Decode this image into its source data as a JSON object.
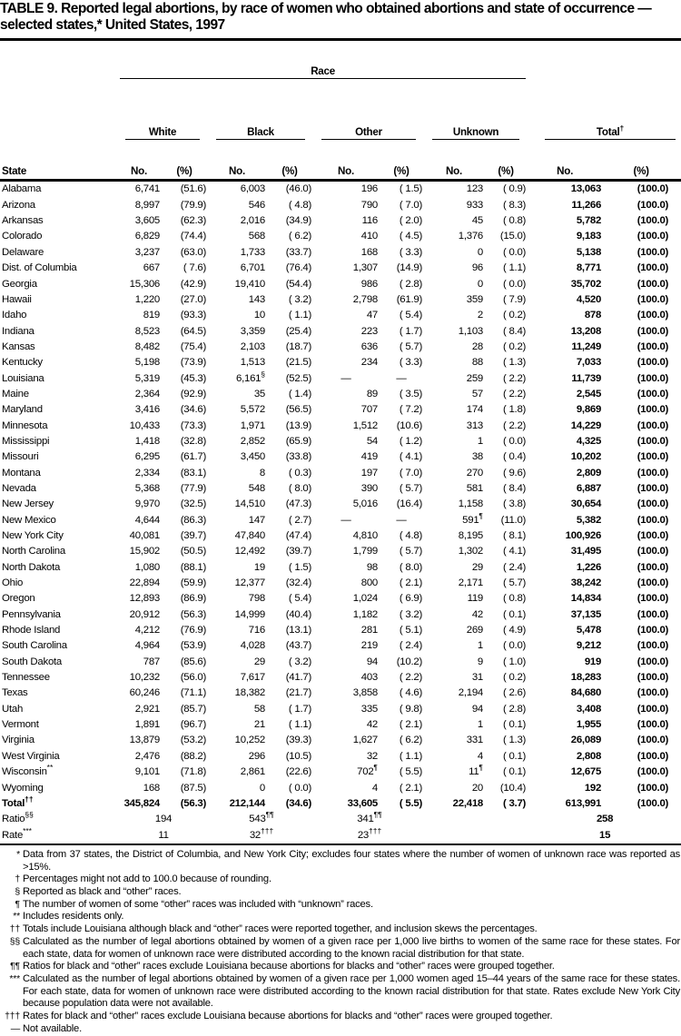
{
  "title": "TABLE 9. Reported legal abortions, by race of women who obtained abortions and state of occurrence — selected states,* United States, 1997",
  "table": {
    "race_label": "Race",
    "state_header": "State",
    "no_header": "No.",
    "pct_header": "(%)",
    "groups": [
      {
        "label": "White",
        "marker": ""
      },
      {
        "label": "Black",
        "marker": ""
      },
      {
        "label": "Other",
        "marker": ""
      },
      {
        "label": "Unknown",
        "marker": ""
      },
      {
        "label": "Total",
        "marker": "†"
      }
    ],
    "rows": [
      {
        "cells": [
          "Alabama",
          "6,741",
          "(51.6)",
          "6,003",
          "(46.0)",
          "196",
          "( 1.5)",
          "123",
          "( 0.9)",
          "13,063",
          "(100.0)"
        ]
      },
      {
        "cells": [
          "Arizona",
          "8,997",
          "(79.9)",
          "546",
          "( 4.8)",
          "790",
          "( 7.0)",
          "933",
          "( 8.3)",
          "11,266",
          "(100.0)"
        ]
      },
      {
        "cells": [
          "Arkansas",
          "3,605",
          "(62.3)",
          "2,016",
          "(34.9)",
          "116",
          "( 2.0)",
          "45",
          "( 0.8)",
          "5,782",
          "(100.0)"
        ]
      },
      {
        "cells": [
          "Colorado",
          "6,829",
          "(74.4)",
          "568",
          "( 6.2)",
          "410",
          "( 4.5)",
          "1,376",
          "(15.0)",
          "9,183",
          "(100.0)"
        ]
      },
      {
        "cells": [
          "Delaware",
          "3,237",
          "(63.0)",
          "1,733",
          "(33.7)",
          "168",
          "( 3.3)",
          "0",
          "( 0.0)",
          "5,138",
          "(100.0)"
        ]
      },
      {
        "cells": [
          "Dist. of Columbia",
          "667",
          "( 7.6)",
          "6,701",
          "(76.4)",
          "1,307",
          "(14.9)",
          "96",
          "( 1.1)",
          "8,771",
          "(100.0)"
        ]
      },
      {
        "cells": [
          "Georgia",
          "15,306",
          "(42.9)",
          "19,410",
          "(54.4)",
          "986",
          "( 2.8)",
          "0",
          "( 0.0)",
          "35,702",
          "(100.0)"
        ]
      },
      {
        "cells": [
          "Hawaii",
          "1,220",
          "(27.0)",
          "143",
          "( 3.2)",
          "2,798",
          "(61.9)",
          "359",
          "( 7.9)",
          "4,520",
          "(100.0)"
        ]
      },
      {
        "cells": [
          "Idaho",
          "819",
          "(93.3)",
          "10",
          "( 1.1)",
          "47",
          "( 5.4)",
          "2",
          "( 0.2)",
          "878",
          "(100.0)"
        ]
      },
      {
        "cells": [
          "Indiana",
          "8,523",
          "(64.5)",
          "3,359",
          "(25.4)",
          "223",
          "( 1.7)",
          "1,103",
          "( 8.4)",
          "13,208",
          "(100.0)"
        ]
      },
      {
        "cells": [
          "Kansas",
          "8,482",
          "(75.4)",
          "2,103",
          "(18.7)",
          "636",
          "( 5.7)",
          "28",
          "( 0.2)",
          "11,249",
          "(100.0)"
        ]
      },
      {
        "cells": [
          "Kentucky",
          "5,198",
          "(73.9)",
          "1,513",
          "(21.5)",
          "234",
          "( 3.3)",
          "88",
          "( 1.3)",
          "7,033",
          "(100.0)"
        ]
      },
      {
        "cells": [
          "Louisiana",
          "5,319",
          "(45.3)",
          "6,161§",
          "(52.5)",
          "—",
          "—",
          "259",
          "( 2.2)",
          "11,739",
          "(100.0)"
        ]
      },
      {
        "cells": [
          "Maine",
          "2,364",
          "(92.9)",
          "35",
          "( 1.4)",
          "89",
          "( 3.5)",
          "57",
          "( 2.2)",
          "2,545",
          "(100.0)"
        ]
      },
      {
        "cells": [
          "Maryland",
          "3,416",
          "(34.6)",
          "5,572",
          "(56.5)",
          "707",
          "( 7.2)",
          "174",
          "( 1.8)",
          "9,869",
          "(100.0)"
        ]
      },
      {
        "cells": [
          "Minnesota",
          "10,433",
          "(73.3)",
          "1,971",
          "(13.9)",
          "1,512",
          "(10.6)",
          "313",
          "( 2.2)",
          "14,229",
          "(100.0)"
        ]
      },
      {
        "cells": [
          "Mississippi",
          "1,418",
          "(32.8)",
          "2,852",
          "(65.9)",
          "54",
          "( 1.2)",
          "1",
          "( 0.0)",
          "4,325",
          "(100.0)"
        ]
      },
      {
        "cells": [
          "Missouri",
          "6,295",
          "(61.7)",
          "3,450",
          "(33.8)",
          "419",
          "( 4.1)",
          "38",
          "( 0.4)",
          "10,202",
          "(100.0)"
        ]
      },
      {
        "cells": [
          "Montana",
          "2,334",
          "(83.1)",
          "8",
          "( 0.3)",
          "197",
          "( 7.0)",
          "270",
          "( 9.6)",
          "2,809",
          "(100.0)"
        ]
      },
      {
        "cells": [
          "Nevada",
          "5,368",
          "(77.9)",
          "548",
          "( 8.0)",
          "390",
          "( 5.7)",
          "581",
          "( 8.4)",
          "6,887",
          "(100.0)"
        ]
      },
      {
        "cells": [
          "New Jersey",
          "9,970",
          "(32.5)",
          "14,510",
          "(47.3)",
          "5,016",
          "(16.4)",
          "1,158",
          "( 3.8)",
          "30,654",
          "(100.0)"
        ]
      },
      {
        "cells": [
          "New Mexico",
          "4,644",
          "(86.3)",
          "147",
          "( 2.7)",
          "—",
          "—",
          "591¶",
          "(11.0)",
          "5,382",
          "(100.0)"
        ]
      },
      {
        "cells": [
          "New York City",
          "40,081",
          "(39.7)",
          "47,840",
          "(47.4)",
          "4,810",
          "( 4.8)",
          "8,195",
          "( 8.1)",
          "100,926",
          "(100.0)"
        ]
      },
      {
        "cells": [
          "North Carolina",
          "15,902",
          "(50.5)",
          "12,492",
          "(39.7)",
          "1,799",
          "( 5.7)",
          "1,302",
          "( 4.1)",
          "31,495",
          "(100.0)"
        ]
      },
      {
        "cells": [
          "North Dakota",
          "1,080",
          "(88.1)",
          "19",
          "( 1.5)",
          "98",
          "( 8.0)",
          "29",
          "( 2.4)",
          "1,226",
          "(100.0)"
        ]
      },
      {
        "cells": [
          "Ohio",
          "22,894",
          "(59.9)",
          "12,377",
          "(32.4)",
          "800",
          "( 2.1)",
          "2,171",
          "( 5.7)",
          "38,242",
          "(100.0)"
        ]
      },
      {
        "cells": [
          "Oregon",
          "12,893",
          "(86.9)",
          "798",
          "( 5.4)",
          "1,024",
          "( 6.9)",
          "119",
          "( 0.8)",
          "14,834",
          "(100.0)"
        ]
      },
      {
        "cells": [
          "Pennsylvania",
          "20,912",
          "(56.3)",
          "14,999",
          "(40.4)",
          "1,182",
          "( 3.2)",
          "42",
          "( 0.1)",
          "37,135",
          "(100.0)"
        ]
      },
      {
        "cells": [
          "Rhode Island",
          "4,212",
          "(76.9)",
          "716",
          "(13.1)",
          "281",
          "( 5.1)",
          "269",
          "( 4.9)",
          "5,478",
          "(100.0)"
        ]
      },
      {
        "cells": [
          "South Carolina",
          "4,964",
          "(53.9)",
          "4,028",
          "(43.7)",
          "219",
          "( 2.4)",
          "1",
          "( 0.0)",
          "9,212",
          "(100.0)"
        ]
      },
      {
        "cells": [
          "South Dakota",
          "787",
          "(85.6)",
          "29",
          "( 3.2)",
          "94",
          "(10.2)",
          "9",
          "( 1.0)",
          "919",
          "(100.0)"
        ]
      },
      {
        "cells": [
          "Tennessee",
          "10,232",
          "(56.0)",
          "7,617",
          "(41.7)",
          "403",
          "( 2.2)",
          "31",
          "( 0.2)",
          "18,283",
          "(100.0)"
        ]
      },
      {
        "cells": [
          "Texas",
          "60,246",
          "(71.1)",
          "18,382",
          "(21.7)",
          "3,858",
          "( 4.6)",
          "2,194",
          "( 2.6)",
          "84,680",
          "(100.0)"
        ]
      },
      {
        "cells": [
          "Utah",
          "2,921",
          "(85.7)",
          "58",
          "( 1.7)",
          "335",
          "( 9.8)",
          "94",
          "( 2.8)",
          "3,408",
          "(100.0)"
        ]
      },
      {
        "cells": [
          "Vermont",
          "1,891",
          "(96.7)",
          "21",
          "( 1.1)",
          "42",
          "( 2.1)",
          "1",
          "( 0.1)",
          "1,955",
          "(100.0)"
        ]
      },
      {
        "cells": [
          "Virginia",
          "13,879",
          "(53.2)",
          "10,252",
          "(39.3)",
          "1,627",
          "( 6.2)",
          "331",
          "( 1.3)",
          "26,089",
          "(100.0)"
        ]
      },
      {
        "cells": [
          "West Virginia",
          "2,476",
          "(88.2)",
          "296",
          "(10.5)",
          "32",
          "( 1.1)",
          "4",
          "( 0.1)",
          "2,808",
          "(100.0)"
        ]
      },
      {
        "cells": [
          "Wisconsin**",
          "9,101",
          "(71.8)",
          "2,861",
          "(22.6)",
          "702¶",
          "( 5.5)",
          "11¶",
          "( 0.1)",
          "12,675",
          "(100.0)"
        ]
      },
      {
        "cells": [
          "Wyoming",
          "168",
          "(87.5)",
          "0",
          "( 0.0)",
          "4",
          "( 2.1)",
          "20",
          "(10.4)",
          "192",
          "(100.0)"
        ]
      },
      {
        "bold": true,
        "cells": [
          "Total††",
          "345,824",
          "(56.3)",
          "212,144",
          "(34.6)",
          "33,605",
          "( 5.5)",
          "22,418",
          "( 3.7)",
          "613,991",
          "(100.0)"
        ]
      }
    ],
    "summary_rows": [
      {
        "label": "Ratio§§",
        "values": [
          "194",
          "543¶¶",
          "341¶¶",
          "",
          "258"
        ]
      },
      {
        "label": "Rate***",
        "values": [
          "11",
          "32†††",
          "23†††",
          "",
          "15"
        ]
      }
    ]
  },
  "footnotes": [
    {
      "marker": "*",
      "text": "Data from 37 states, the District of Columbia, and New York City; excludes four states where the number of women of unknown race was reported as >15%."
    },
    {
      "marker": "†",
      "text": "Percentages might not add to 100.0 because of rounding."
    },
    {
      "marker": "§",
      "text": "Reported as black and “other” races."
    },
    {
      "marker": "¶",
      "text": "The number of women of some “other” races was included with “unknown” races."
    },
    {
      "marker": "**",
      "text": "Includes residents only."
    },
    {
      "marker": "††",
      "text": "Totals include Louisiana although black and “other” races were reported together, and inclusion skews the percentages."
    },
    {
      "marker": "§§",
      "text": "Calculated as the number of legal abortions obtained by women of a given race per 1,000 live births to women of the same race for these states. For each state, data for women of unknown race were distributed according to the known racial distribution for that state."
    },
    {
      "marker": "¶¶",
      "text": "Ratios for black and “other” races exclude Louisiana because abortions for blacks and “other” races were grouped together."
    },
    {
      "marker": "***",
      "text": "Calculated as the number of legal abortions obtained by women of a given race per 1,000 women aged 15–44 years of the same race for these states. For each state, data for women of unknown race were distributed according to the known racial distribution for that state. Rates exclude New York City because population data were not available."
    },
    {
      "marker": "†††",
      "text": "Rates for black and “other” races exclude Louisiana because abortions for blacks and “other” races were grouped together."
    },
    {
      "marker": "—",
      "text": "Not available."
    }
  ]
}
